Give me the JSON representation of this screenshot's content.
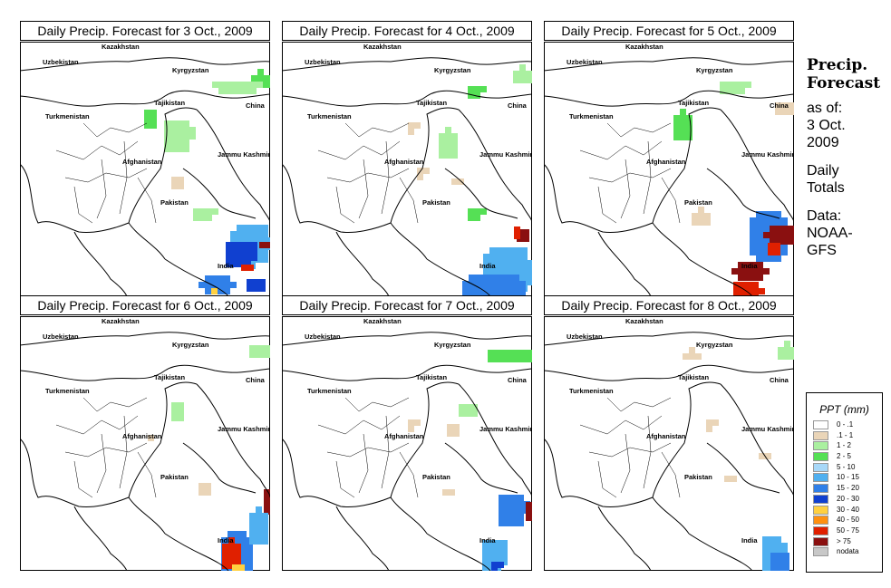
{
  "panels": [
    {
      "title": "Daily Precip. Forecast for  3 Oct., 2009"
    },
    {
      "title": "Daily Precip. Forecast for  4 Oct., 2009"
    },
    {
      "title": "Daily Precip. Forecast for  5 Oct., 2009"
    },
    {
      "title": "Daily Precip. Forecast for  6 Oct., 2009"
    },
    {
      "title": "Daily Precip. Forecast for  7 Oct., 2009"
    },
    {
      "title": "Daily Precip. Forecast for  8 Oct., 2009"
    }
  ],
  "map_labels": [
    "Kazakhstan",
    "Uzbekistan",
    "Kyrgyzstan",
    "Tajikistan",
    "China",
    "Turkmenistan",
    "Afghanistan",
    "Jammu Kashmir",
    "Pakistan",
    "India"
  ],
  "side_text": {
    "heading_1": "Precip.",
    "heading_2": "Forecast",
    "as_of_1": "as of:",
    "as_of_2": "3 Oct.",
    "as_of_3": "2009",
    "daily_1": "Daily",
    "daily_2": "Totals",
    "data_1": "Data:",
    "data_2": "NOAA-",
    "data_3": "GFS"
  },
  "legend": {
    "title": "PPT (mm)",
    "items": [
      {
        "label": "0 - .1",
        "color": "#ffffff"
      },
      {
        "label": ".1 - 1",
        "color": "#ead5b8"
      },
      {
        "label": "1 - 2",
        "color": "#aaf0a0"
      },
      {
        "label": "2 - 5",
        "color": "#55e055"
      },
      {
        "label": "5 - 10",
        "color": "#a8d8f8"
      },
      {
        "label": "10 - 15",
        "color": "#50b0f0"
      },
      {
        "label": "15 - 20",
        "color": "#3080e8"
      },
      {
        "label": "20 - 30",
        "color": "#1040d0"
      },
      {
        "label": "30 - 40",
        "color": "#ffd040"
      },
      {
        "label": "40 - 50",
        "color": "#ff9010"
      },
      {
        "label": "50 - 75",
        "color": "#e02000"
      },
      {
        "label": "> 75",
        "color": "#8a1010"
      },
      {
        "label": "nodata",
        "color": "#c8c8c8"
      }
    ]
  }
}
